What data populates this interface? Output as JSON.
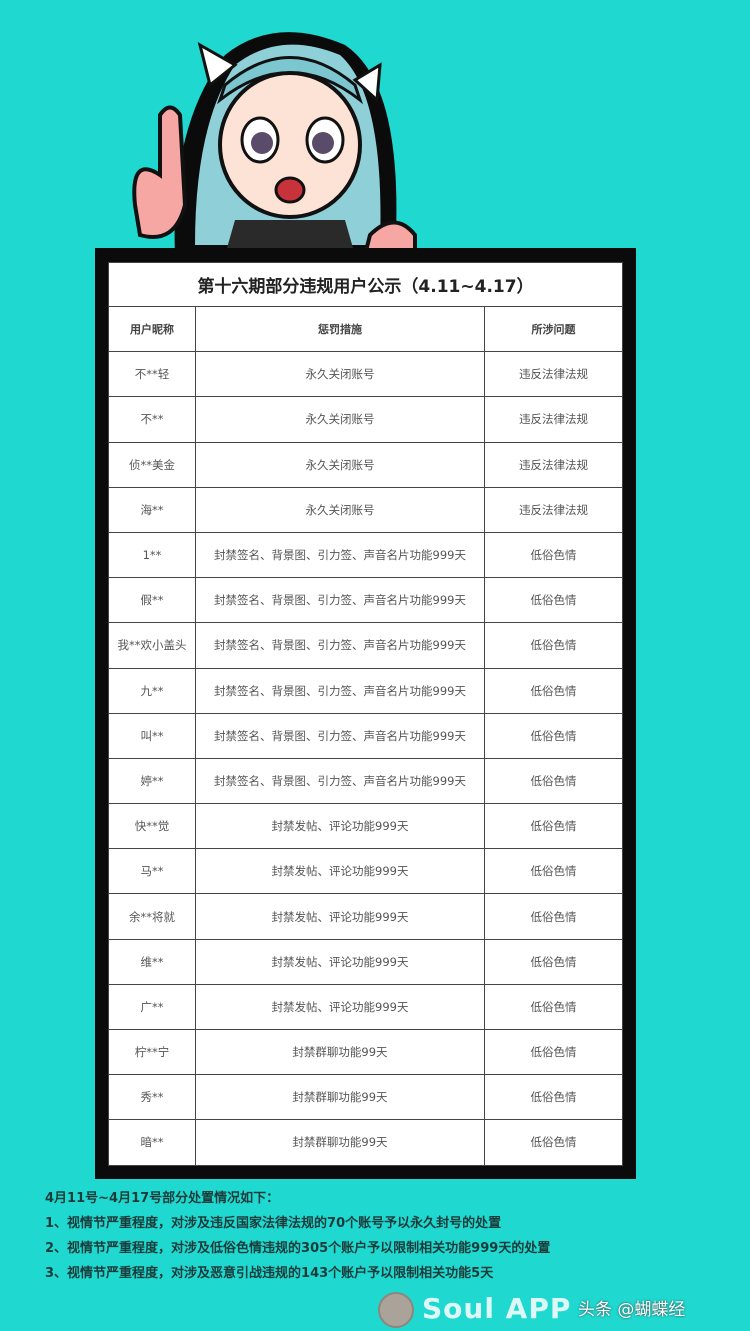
{
  "notice": {
    "title": "第十六期部分违规用户公示（4.11~4.17）",
    "headers": [
      "用户昵称",
      "惩罚措施",
      "所涉问题"
    ],
    "rows": [
      [
        "不**轻",
        "永久关闭账号",
        "违反法律法规"
      ],
      [
        "不**",
        "永久关闭账号",
        "违反法律法规"
      ],
      [
        "侦**美金",
        "永久关闭账号",
        "违反法律法规"
      ],
      [
        "海**",
        "永久关闭账号",
        "违反法律法规"
      ],
      [
        "1**",
        "封禁签名、背景图、引力签、声音名片功能999天",
        "低俗色情"
      ],
      [
        "假**",
        "封禁签名、背景图、引力签、声音名片功能999天",
        "低俗色情"
      ],
      [
        "我**欢小盖头",
        "封禁签名、背景图、引力签、声音名片功能999天",
        "低俗色情"
      ],
      [
        "九**",
        "封禁签名、背景图、引力签、声音名片功能999天",
        "低俗色情"
      ],
      [
        "叫**",
        "封禁签名、背景图、引力签、声音名片功能999天",
        "低俗色情"
      ],
      [
        "婷**",
        "封禁签名、背景图、引力签、声音名片功能999天",
        "低俗色情"
      ],
      [
        "快**觉",
        "封禁发帖、评论功能999天",
        "低俗色情"
      ],
      [
        "马**",
        "封禁发帖、评论功能999天",
        "低俗色情"
      ],
      [
        "余**将就",
        "封禁发帖、评论功能999天",
        "低俗色情"
      ],
      [
        "维**",
        "封禁发帖、评论功能999天",
        "低俗色情"
      ],
      [
        "广**",
        "封禁发帖、评论功能999天",
        "低俗色情"
      ],
      [
        "柠**宁",
        "封禁群聊功能99天",
        "低俗色情"
      ],
      [
        "秀**",
        "封禁群聊功能99天",
        "低俗色情"
      ],
      [
        "暗**",
        "封禁群聊功能99天",
        "低俗色情"
      ]
    ]
  },
  "summary": {
    "heading": "4月11号~4月17号部分处置情况如下：",
    "items": [
      "1、视情节严重程度，对涉及违反国家法律法规的70个账号予以永久封号的处置",
      "2、视情节严重程度，对涉及低俗色情违规的305个账户予以限制相关功能999天的处置",
      "3、视情节严重程度，对涉及恶意引战违规的143个账户予以限制相关功能5天"
    ]
  },
  "watermark": {
    "brand": "Soul APP",
    "source": "头条 @蝴蝶经"
  },
  "colors": {
    "background": "#1fd8cf",
    "frame": "#0b0b0b"
  }
}
